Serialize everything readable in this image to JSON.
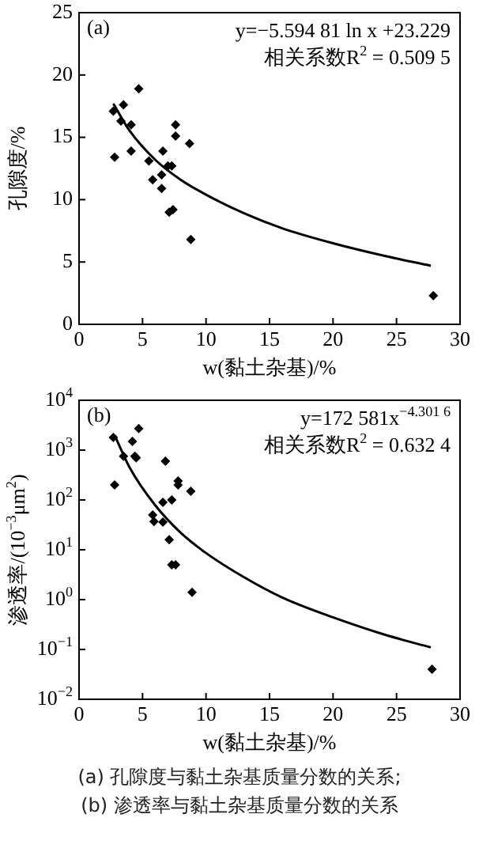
{
  "chart_data": [
    {
      "type": "scatter",
      "title": "(a)",
      "xlabel": "w(黏土杂基)/%",
      "ylabel": "孔隙度/%",
      "xlim": [
        0,
        30
      ],
      "xticks": [
        0,
        5,
        10,
        15,
        20,
        25,
        30
      ],
      "ylim": [
        0,
        25
      ],
      "yticks": [
        0,
        5,
        10,
        15,
        20,
        25
      ],
      "grid": false,
      "marker": "diamond",
      "annotations": [
        "y=−5.594 81 ln x +23.229",
        "相关系数R$^{2}$ = 0.509 5"
      ],
      "series": [
        {
          "type": "scatter",
          "color": "#000000",
          "x": [
            2.7,
            2.8,
            3.3,
            3.5,
            4.1,
            4.1,
            4.7,
            5.5,
            5.8,
            6.6,
            6.5,
            6.5,
            7.0,
            7.3,
            7.1,
            7.4,
            7.6,
            7.6,
            8.7,
            8.8,
            27.9
          ],
          "values": [
            17.1,
            13.4,
            16.3,
            17.6,
            16.0,
            13.9,
            18.9,
            13.1,
            11.6,
            13.9,
            12.0,
            10.9,
            12.7,
            12.7,
            9.0,
            9.2,
            16.0,
            15.1,
            14.5,
            6.8,
            2.3
          ]
        },
        {
          "type": "line",
          "color": "#000000",
          "marker": "none",
          "line_style": "solid",
          "x": [
            2.7,
            4,
            6,
            8,
            10,
            13,
            16,
            20,
            24,
            27.7
          ],
          "values": [
            17.7,
            15.5,
            13.2,
            11.6,
            10.4,
            8.9,
            7.7,
            6.5,
            5.5,
            4.7
          ]
        }
      ]
    },
    {
      "type": "scatter",
      "title": "(b)",
      "xlabel": "w(黏土杂基)/%",
      "ylabel": "渗透率/(10$^{−3}$μm$^{2}$)",
      "log": "y",
      "xlim": [
        0,
        30
      ],
      "xticks": [
        0,
        5,
        10,
        15,
        20,
        25,
        30
      ],
      "ylim": [
        0.01,
        10000
      ],
      "yticks": [
        {
          "value": 0.01,
          "label": "10$^{−2}$"
        },
        {
          "value": 0.1,
          "label": "10$^{−1}$"
        },
        {
          "value": 1,
          "label": "10$^{0}$"
        },
        {
          "value": 10,
          "label": "10$^{1}$"
        },
        {
          "value": 100,
          "label": "10$^{2}$"
        },
        {
          "value": 1000,
          "label": "10$^{3}$"
        },
        {
          "value": 10000,
          "label": "10$^{4}$"
        }
      ],
      "grid": false,
      "marker": "diamond",
      "annotations": [
        "y=172 581x$^{−4.301 6}$",
        "相关系数R$^{2}$ = 0.632 4",
        "(a) 孔隙度与黏土杂基质量分数的关系;",
        "(b) 渗透率与黏土杂基质量分数的关系"
      ],
      "series": [
        {
          "type": "scatter",
          "color": "#000000",
          "x": [
            2.7,
            2.8,
            3.5,
            4.2,
            4.4,
            4.5,
            4.7,
            5.8,
            5.9,
            6.8,
            6.6,
            6.6,
            7.3,
            7.1,
            7.3,
            7.6,
            7.8,
            7.8,
            8.8,
            8.9,
            27.8
          ],
          "values": [
            1800,
            200,
            750,
            1500,
            750,
            700,
            2700,
            50,
            37,
            600,
            90,
            36,
            100,
            16,
            5,
            5,
            240,
            200,
            150,
            1.4,
            0.04
          ]
        },
        {
          "type": "line",
          "color": "#000000",
          "marker": "none",
          "line_style": "solid",
          "x": [
            2.8,
            4,
            6,
            8,
            10,
            13,
            16,
            20,
            24,
            27.7
          ],
          "values": [
            2000,
            440,
            78,
            22,
            8.6,
            2.8,
            1.1,
            0.44,
            0.2,
            0.11
          ]
        }
      ]
    }
  ]
}
